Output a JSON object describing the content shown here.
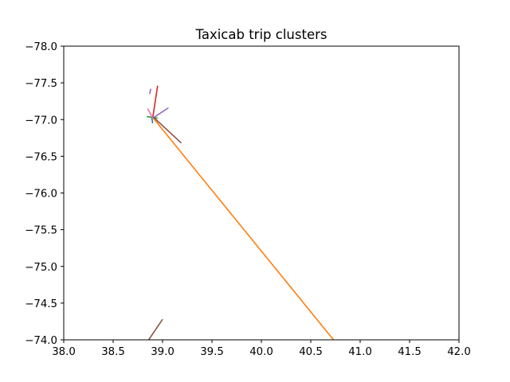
{
  "chart_data": {
    "type": "line",
    "title": "Taxicab trip clusters",
    "xlabel": "",
    "ylabel": "",
    "xlim": [
      38.0,
      42.0
    ],
    "ylim": [
      -78.0,
      -74.0
    ],
    "y_inverted": true,
    "grid": false,
    "legend": "none",
    "x_ticks": [
      "38.0",
      "38.5",
      "39.0",
      "39.5",
      "40.0",
      "40.5",
      "41.0",
      "41.5",
      "42.0"
    ],
    "y_ticks": [
      "−78.0",
      "−77.5",
      "−77.0",
      "−76.5",
      "−76.0",
      "−75.5",
      "−75.0",
      "−74.5",
      "−74.0"
    ],
    "series": [
      {
        "color": "#1f77b4",
        "x": [
          38.89,
          38.9
        ],
        "y": [
          -77.03,
          -76.95
        ]
      },
      {
        "color": "#ff7f0e",
        "x": [
          38.9,
          40.73
        ],
        "y": [
          -77.03,
          -74.0
        ]
      },
      {
        "color": "#2ca02c",
        "x": [
          38.84,
          38.95
        ],
        "y": [
          -77.04,
          -77.02
        ]
      },
      {
        "color": "#d62728",
        "x": [
          38.9,
          38.95
        ],
        "y": [
          -77.02,
          -77.46
        ]
      },
      {
        "color": "#9467bd",
        "x": [
          38.9,
          39.06
        ],
        "y": [
          -77.02,
          -77.16
        ]
      },
      {
        "color": "#9467bd",
        "x": [
          38.87,
          38.88
        ],
        "y": [
          -77.35,
          -77.42
        ]
      },
      {
        "color": "#8c564b",
        "x": [
          38.91,
          39.19
        ],
        "y": [
          -77.03,
          -76.68
        ]
      },
      {
        "color": "#8c564b",
        "x": [
          38.86,
          39.0
        ],
        "y": [
          -74.0,
          -74.28
        ]
      },
      {
        "color": "#e377c2",
        "x": [
          38.85,
          38.9
        ],
        "y": [
          -77.15,
          -77.02
        ]
      }
    ]
  }
}
